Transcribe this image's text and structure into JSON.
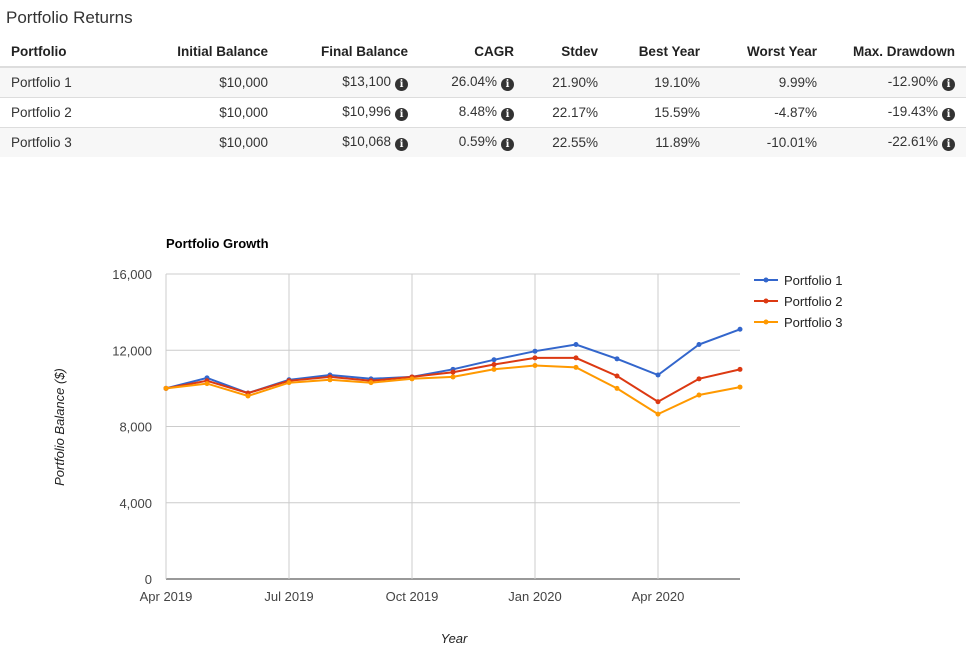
{
  "section_title": "Portfolio Returns",
  "table": {
    "headers": [
      "Portfolio",
      "Initial Balance",
      "Final Balance",
      "CAGR",
      "Stdev",
      "Best Year",
      "Worst Year",
      "Max. Drawdown"
    ],
    "rows": [
      {
        "name": "Portfolio 1",
        "initial": "$10,000",
        "final": "$13,100",
        "cagr": "26.04%",
        "stdev": "21.90%",
        "best": "19.10%",
        "worst": "9.99%",
        "drawdown": "-12.90%"
      },
      {
        "name": "Portfolio 2",
        "initial": "$10,000",
        "final": "$10,996",
        "cagr": "8.48%",
        "stdev": "22.17%",
        "best": "15.59%",
        "worst": "-4.87%",
        "drawdown": "-19.43%"
      },
      {
        "name": "Portfolio 3",
        "initial": "$10,000",
        "final": "$10,068",
        "cagr": "0.59%",
        "stdev": "22.55%",
        "best": "11.89%",
        "worst": "-10.01%",
        "drawdown": "-22.61%"
      }
    ],
    "info_icon": "info-circle-icon"
  },
  "chart_data": {
    "type": "line",
    "title": "Portfolio Growth",
    "xlabel": "Year",
    "ylabel": "Portfolio Balance ($)",
    "ylim": [
      0,
      16000
    ],
    "yticks": [
      0,
      4000,
      8000,
      12000,
      16000
    ],
    "ytick_labels": [
      "0",
      "4,000",
      "8,000",
      "12,000",
      "16,000"
    ],
    "xticks": [
      "Apr 2019",
      "Jul 2019",
      "Oct 2019",
      "Jan 2020",
      "Apr 2020"
    ],
    "x": [
      "2019-04",
      "2019-05",
      "2019-06",
      "2019-07",
      "2019-08",
      "2019-09",
      "2019-10",
      "2019-11",
      "2019-12",
      "2020-01",
      "2020-02",
      "2020-03",
      "2020-04",
      "2020-05",
      "2020-06"
    ],
    "grid": true,
    "legend_position": "top-right",
    "series": [
      {
        "name": "Portfolio 1",
        "color": "#3366cc",
        "values": [
          10000,
          10550,
          9750,
          10450,
          10700,
          10500,
          10600,
          11000,
          11500,
          11950,
          12300,
          11550,
          10700,
          12300,
          13100
        ]
      },
      {
        "name": "Portfolio 2",
        "color": "#dc3912",
        "values": [
          10000,
          10400,
          9750,
          10400,
          10600,
          10400,
          10600,
          10850,
          11250,
          11600,
          11600,
          10650,
          9300,
          10500,
          10996
        ]
      },
      {
        "name": "Portfolio 3",
        "color": "#ff9900",
        "values": [
          10000,
          10250,
          9600,
          10300,
          10450,
          10300,
          10500,
          10600,
          11000,
          11200,
          11100,
          10000,
          8650,
          9650,
          10068
        ]
      }
    ]
  }
}
